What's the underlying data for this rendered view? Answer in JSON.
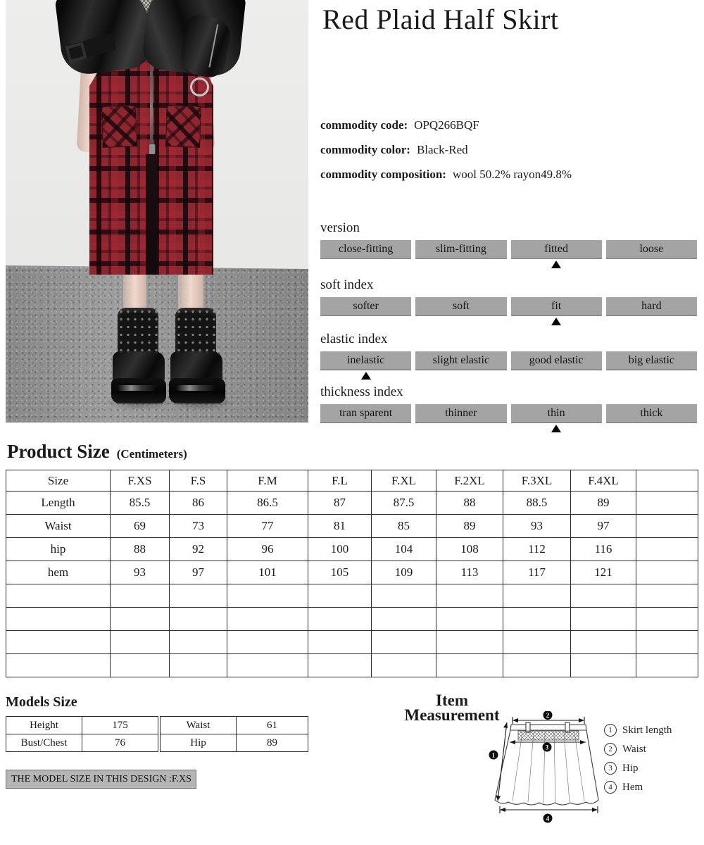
{
  "product": {
    "title": "Red Plaid Half Skirt",
    "commodity": [
      {
        "label": "commodity code:",
        "value": "OPQ266BQF"
      },
      {
        "label": "commodity color:",
        "value": "Black-Red"
      },
      {
        "label": "commodity composition:",
        "value": "wool 50.2% rayon49.8%"
      }
    ]
  },
  "indexes": [
    {
      "title": "version",
      "options": [
        "close-fitting",
        "slim-fitting",
        "fitted",
        "loose"
      ],
      "selected": 2
    },
    {
      "title": "soft index",
      "options": [
        "softer",
        "soft",
        "fit",
        "hard"
      ],
      "selected": 2
    },
    {
      "title": "elastic index",
      "options": [
        "inelastic",
        "slight elastic",
        "good elastic",
        "big elastic"
      ],
      "selected": 0
    },
    {
      "title": "thickness index",
      "options": [
        "tran sparent",
        "thinner",
        "thin",
        "thick"
      ],
      "selected": 2
    }
  ],
  "size_table": {
    "title": "Product Size",
    "subtitle": "(Centimeters)",
    "header": [
      "Size",
      "F.XS",
      "F.S",
      "F.M",
      "F.L",
      "F.XL",
      "F.2XL",
      "F.3XL",
      "F.4XL",
      ""
    ],
    "rows": [
      [
        "Length",
        "85.5",
        "86",
        "86.5",
        "87",
        "87.5",
        "88",
        "88.5",
        "89",
        ""
      ],
      [
        "Waist",
        "69",
        "73",
        "77",
        "81",
        "85",
        "89",
        "93",
        "97",
        ""
      ],
      [
        "hip",
        "88",
        "92",
        "96",
        "100",
        "104",
        "108",
        "112",
        "116",
        ""
      ],
      [
        "hem",
        "93",
        "97",
        "101",
        "105",
        "109",
        "113",
        "117",
        "121",
        ""
      ]
    ],
    "empty_rows": 4
  },
  "models_size": {
    "title": "Models Size",
    "left": [
      [
        "Height",
        "175"
      ],
      [
        "Bust/Chest",
        "76"
      ]
    ],
    "right": [
      [
        "Waist",
        "61"
      ],
      [
        "Hip",
        "89"
      ]
    ],
    "note": "THE MODEL SIZE IN THIS DESIGN :F.XS"
  },
  "measurement": {
    "heading_line1": "Item",
    "heading_line2": "Measurement",
    "markers": [
      "1",
      "2",
      "3",
      "4"
    ],
    "legend": [
      {
        "num": "1",
        "label": "Skirt length"
      },
      {
        "num": "2",
        "label": "Waist"
      },
      {
        "num": "3",
        "label": "Hip"
      },
      {
        "num": "4",
        "label": "Hem"
      }
    ]
  },
  "colors": {
    "option_cell": "#a4a4a4",
    "badge": "#b5b5b5",
    "plaid_red": "#8e2630"
  }
}
